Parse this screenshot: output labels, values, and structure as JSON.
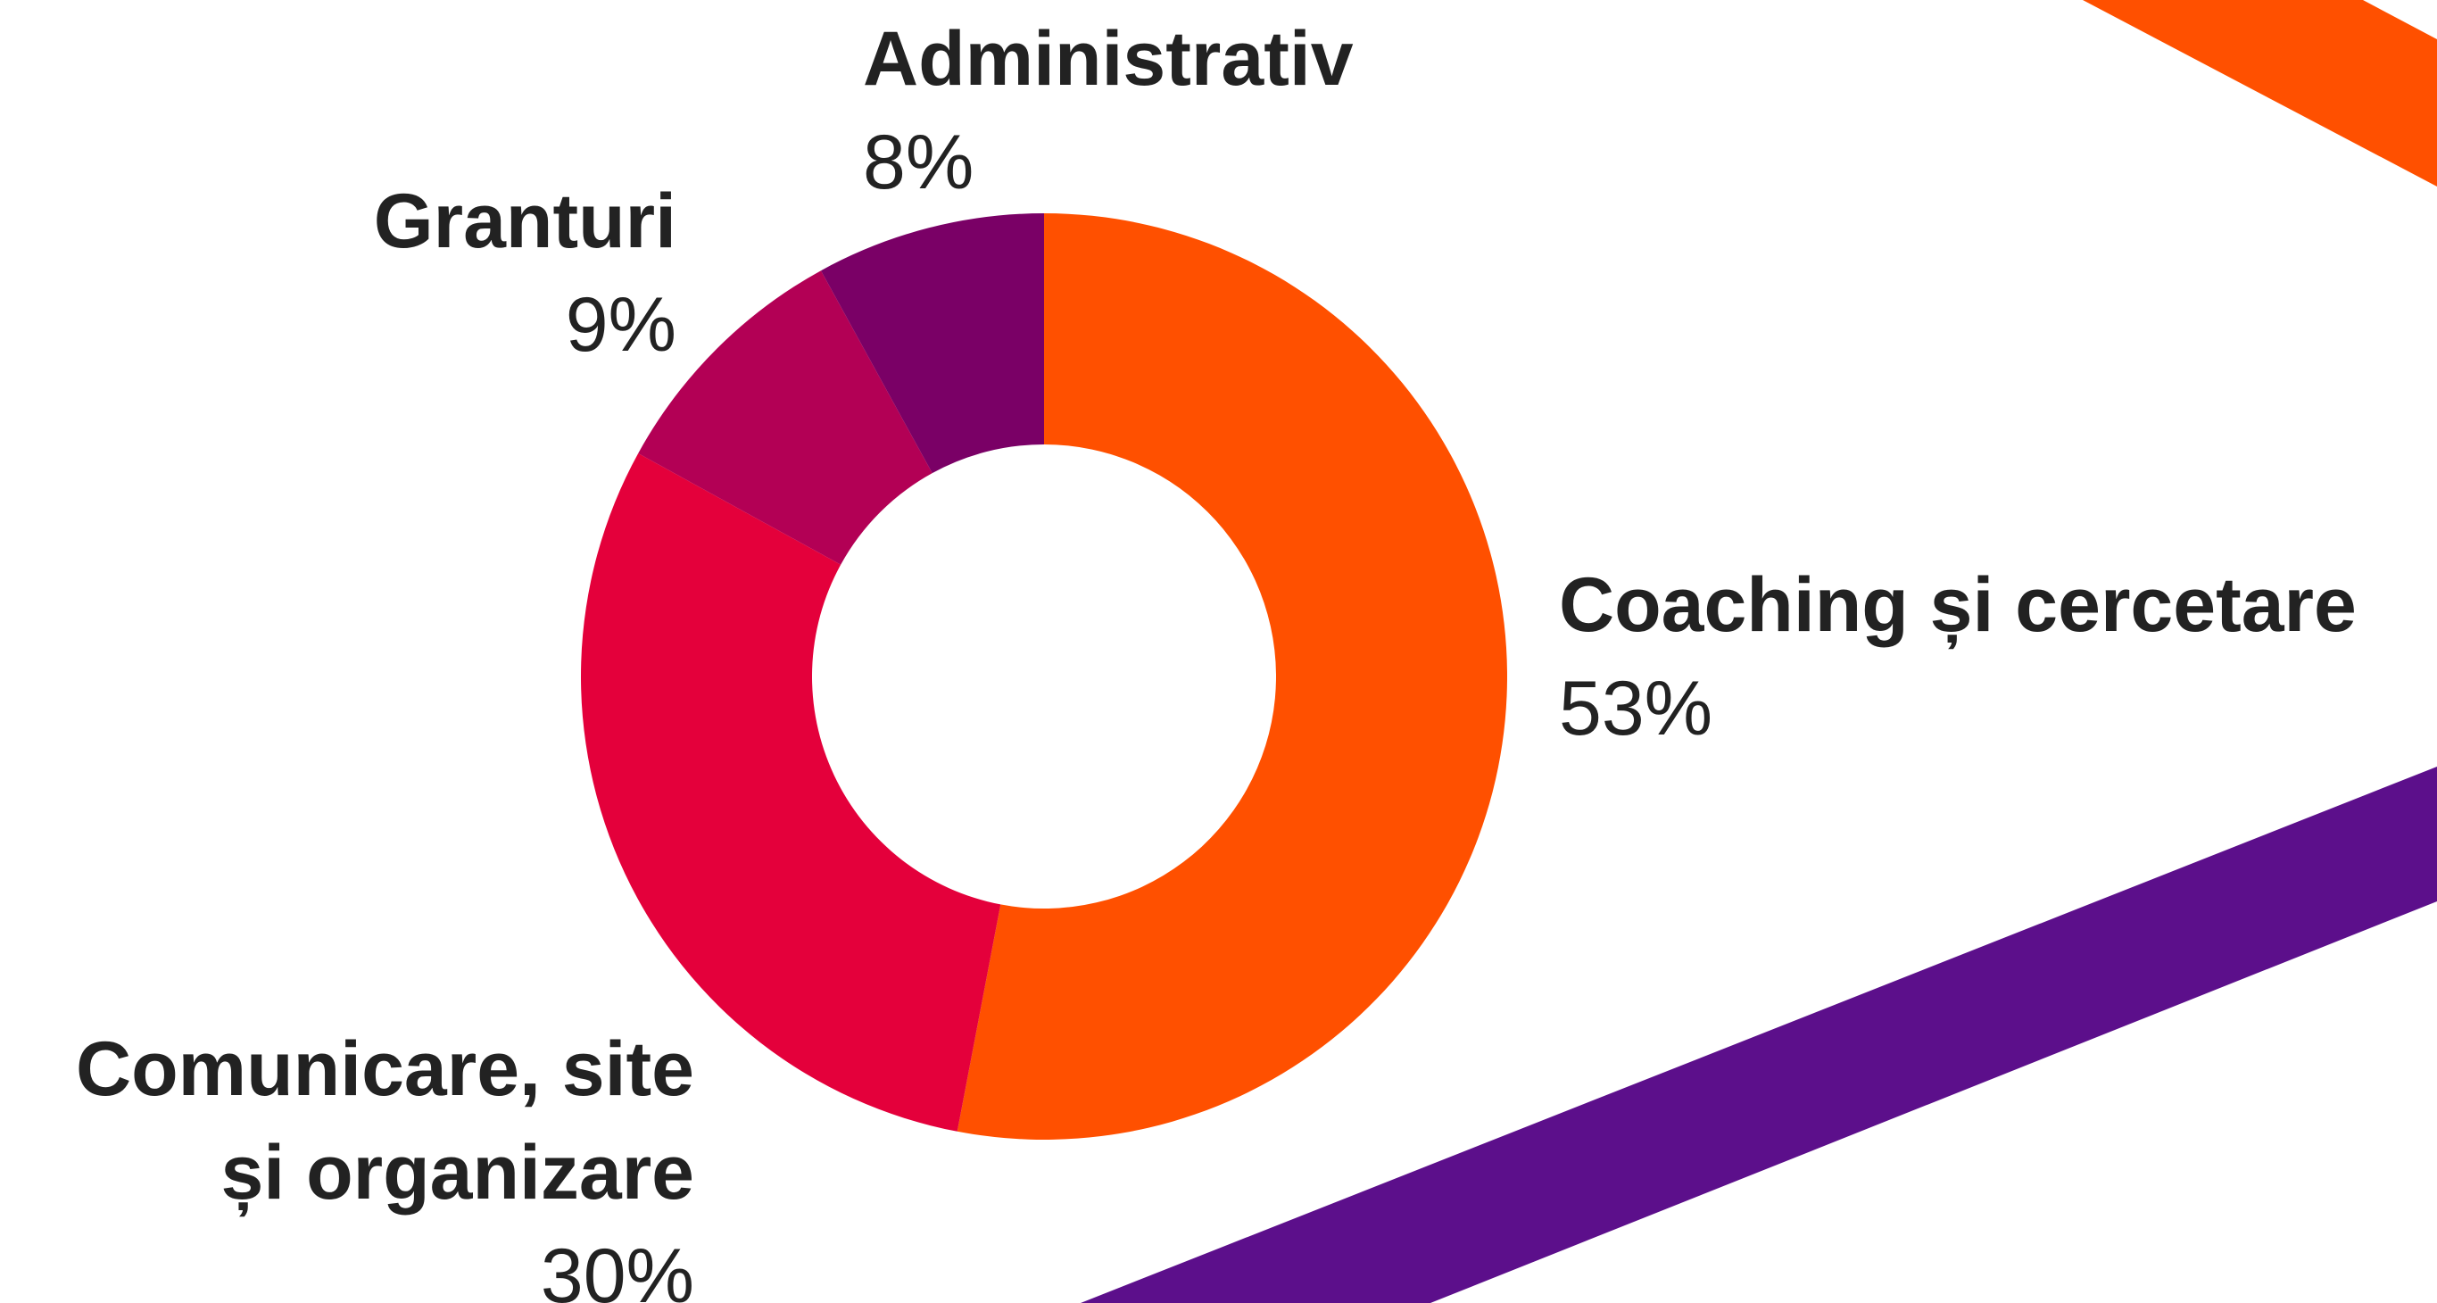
{
  "chart_data": {
    "type": "pie",
    "donut": true,
    "categories": [
      "Coaching și cercetare",
      "Comunicare, site și organizare",
      "Granturi",
      "Administrativ"
    ],
    "values": [
      53,
      30,
      9,
      8
    ],
    "value_labels": [
      "53%",
      "30%",
      "9%",
      "8%"
    ],
    "colors": [
      "#ff5000",
      "#e4003b",
      "#b30055",
      "#7a0066"
    ]
  }
}
